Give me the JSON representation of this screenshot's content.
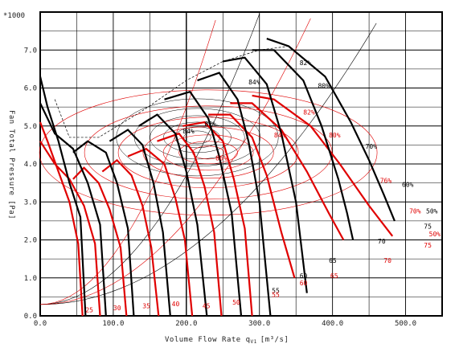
{
  "chart_data": {
    "type": "line",
    "y_multiplier_label": "*1000",
    "xlabel": "Volume Flow Rate q",
    "xlabel_sub": "V1",
    "xlabel_unit": "[m³/s]",
    "ylabel": "Fan Total Pressure [Pa]",
    "xlim": [
      0,
      550
    ],
    "ylim": [
      0,
      8.0
    ],
    "x_ticks": [
      "0.0",
      "100.0",
      "200.0",
      "300.0",
      "400.0",
      "500.0"
    ],
    "x_tick_values": [
      0,
      100,
      200,
      300,
      400,
      500
    ],
    "y_ticks": [
      "0.0",
      "1.0",
      "2.0",
      "3.0",
      "4.0",
      "5.0",
      "6.0",
      "7.0"
    ],
    "y_tick_values": [
      0,
      1,
      2,
      3,
      4,
      5,
      6,
      7
    ],
    "grid": true,
    "colors": {
      "series_a": "#000000",
      "series_b": "#e00000",
      "grid": "#000000"
    },
    "series_black": [
      {
        "name": "",
        "points": [
          [
            0,
            6.3
          ],
          [
            10,
            5.5
          ],
          [
            25,
            4.6
          ],
          [
            40,
            3.5
          ],
          [
            55,
            2.6
          ],
          [
            62,
            0.0
          ]
        ]
      },
      {
        "name": "",
        "points": [
          [
            0,
            5.6
          ],
          [
            20,
            4.8
          ],
          [
            45,
            4.4
          ],
          [
            65,
            3.5
          ],
          [
            82,
            2.4
          ],
          [
            90,
            0.0
          ]
        ]
      },
      {
        "name": "",
        "points": [
          [
            45,
            4.3
          ],
          [
            65,
            4.6
          ],
          [
            90,
            4.3
          ],
          [
            105,
            3.5
          ],
          [
            120,
            2.3
          ],
          [
            128,
            0.0
          ]
        ]
      },
      {
        "name": "",
        "points": [
          [
            95,
            4.6
          ],
          [
            120,
            4.9
          ],
          [
            140,
            4.5
          ],
          [
            155,
            3.5
          ],
          [
            168,
            2.2
          ],
          [
            178,
            0.0
          ]
        ]
      },
      {
        "name": "",
        "points": [
          [
            135,
            5.0
          ],
          [
            160,
            5.3
          ],
          [
            185,
            4.8
          ],
          [
            200,
            3.8
          ],
          [
            215,
            2.4
          ],
          [
            228,
            0.0
          ]
        ]
      },
      {
        "name": "",
        "points": [
          [
            170,
            5.7
          ],
          [
            205,
            5.9
          ],
          [
            230,
            5.2
          ],
          [
            245,
            4.2
          ],
          [
            262,
            2.7
          ],
          [
            275,
            0.0
          ]
        ]
      },
      {
        "name": "",
        "points": [
          [
            215,
            6.2
          ],
          [
            245,
            6.4
          ],
          [
            270,
            5.7
          ],
          [
            285,
            4.6
          ],
          [
            300,
            3.0
          ],
          [
            315,
            0.0
          ]
        ]
      },
      {
        "name": "",
        "points": [
          [
            250,
            6.7
          ],
          [
            280,
            6.8
          ],
          [
            310,
            6.1
          ],
          [
            330,
            4.8
          ],
          [
            350,
            3.0
          ],
          [
            365,
            0.6
          ]
        ]
      },
      {
        "name": "",
        "points": [
          [
            290,
            7.0
          ],
          [
            320,
            7.0
          ],
          [
            360,
            6.2
          ],
          [
            385,
            5.0
          ],
          [
            408,
            3.6
          ],
          [
            420,
            2.7
          ],
          [
            428,
            2.0
          ]
        ]
      },
      {
        "name": "",
        "points": [
          [
            310,
            7.3
          ],
          [
            340,
            7.1
          ],
          [
            390,
            6.3
          ],
          [
            425,
            5.1
          ],
          [
            450,
            4.1
          ],
          [
            470,
            3.2
          ],
          [
            485,
            2.5
          ]
        ]
      }
    ],
    "series_red": [
      {
        "name": "",
        "points": [
          [
            0,
            5.1
          ],
          [
            10,
            4.6
          ],
          [
            25,
            3.8
          ],
          [
            40,
            3.0
          ],
          [
            52,
            1.9
          ],
          [
            58,
            0.0
          ]
        ]
      },
      {
        "name": "",
        "points": [
          [
            0,
            4.6
          ],
          [
            20,
            4.0
          ],
          [
            40,
            3.6
          ],
          [
            60,
            2.9
          ],
          [
            75,
            1.9
          ],
          [
            82,
            0.0
          ]
        ]
      },
      {
        "name": "",
        "points": [
          [
            45,
            3.6
          ],
          [
            60,
            3.9
          ],
          [
            80,
            3.5
          ],
          [
            95,
            2.8
          ],
          [
            110,
            1.8
          ],
          [
            118,
            0.0
          ]
        ]
      },
      {
        "name": "",
        "points": [
          [
            85,
            3.8
          ],
          [
            105,
            4.1
          ],
          [
            125,
            3.7
          ],
          [
            140,
            2.9
          ],
          [
            152,
            1.8
          ],
          [
            162,
            0.0
          ]
        ]
      },
      {
        "name": "",
        "points": [
          [
            120,
            4.2
          ],
          [
            145,
            4.4
          ],
          [
            170,
            4.0
          ],
          [
            185,
            3.1
          ],
          [
            198,
            2.0
          ],
          [
            208,
            0.0
          ]
        ]
      },
      {
        "name": "",
        "points": [
          [
            160,
            4.6
          ],
          [
            190,
            4.8
          ],
          [
            210,
            4.3
          ],
          [
            225,
            3.4
          ],
          [
            238,
            2.2
          ],
          [
            248,
            0.0
          ]
        ]
      },
      {
        "name": "",
        "points": [
          [
            195,
            5.0
          ],
          [
            225,
            5.1
          ],
          [
            250,
            4.6
          ],
          [
            265,
            3.6
          ],
          [
            280,
            2.3
          ],
          [
            290,
            0.0
          ]
        ]
      },
      {
        "name": "",
        "points": [
          [
            230,
            5.3
          ],
          [
            260,
            5.3
          ],
          [
            290,
            4.7
          ],
          [
            310,
            3.7
          ],
          [
            330,
            2.2
          ],
          [
            348,
            1.0
          ]
        ]
      },
      {
        "name": "",
        "points": [
          [
            260,
            5.6
          ],
          [
            290,
            5.6
          ],
          [
            330,
            4.9
          ],
          [
            365,
            3.8
          ],
          [
            395,
            2.7
          ],
          [
            415,
            2.0
          ]
        ]
      },
      {
        "name": "",
        "points": [
          [
            290,
            5.8
          ],
          [
            320,
            5.7
          ],
          [
            370,
            5.0
          ],
          [
            410,
            4.0
          ],
          [
            450,
            2.9
          ],
          [
            482,
            2.1
          ]
        ]
      }
    ],
    "efficiency_labels_black": [
      {
        "text": "82%",
        "x": 355,
        "y": 6.6
      },
      {
        "text": "84%",
        "x": 285,
        "y": 6.1
      },
      {
        "text": "80%",
        "x": 380,
        "y": 6.0
      },
      {
        "text": "82%",
        "x": 225,
        "y": 5.0
      },
      {
        "text": "84%",
        "x": 195,
        "y": 4.8
      },
      {
        "text": "70%",
        "x": 445,
        "y": 4.4
      },
      {
        "text": "60%",
        "x": 495,
        "y": 3.4
      },
      {
        "text": "50%",
        "x": 528,
        "y": 2.7
      },
      {
        "text": "75",
        "x": 525,
        "y": 2.3
      },
      {
        "text": "70",
        "x": 462,
        "y": 1.9
      },
      {
        "text": "65",
        "x": 395,
        "y": 1.4
      },
      {
        "text": "60",
        "x": 355,
        "y": 1.0
      },
      {
        "text": "55",
        "x": 317,
        "y": 0.6
      }
    ],
    "efficiency_labels_red": [
      {
        "text": "82%",
        "x": 360,
        "y": 5.3
      },
      {
        "text": "84%",
        "x": 320,
        "y": 4.7
      },
      {
        "text": "80%",
        "x": 395,
        "y": 4.7
      },
      {
        "text": "86%",
        "x": 240,
        "y": 4.1
      },
      {
        "text": "76%",
        "x": 465,
        "y": 3.5
      },
      {
        "text": "70%",
        "x": 505,
        "y": 2.7
      },
      {
        "text": "50%",
        "x": 532,
        "y": 2.1
      },
      {
        "text": "75",
        "x": 525,
        "y": 1.8
      },
      {
        "text": "70",
        "x": 470,
        "y": 1.4
      },
      {
        "text": "65",
        "x": 397,
        "y": 1.0
      },
      {
        "text": "60",
        "x": 355,
        "y": 0.8
      },
      {
        "text": "55",
        "x": 317,
        "y": 0.5
      },
      {
        "text": "50",
        "x": 263,
        "y": 0.3
      },
      {
        "text": "45",
        "x": 222,
        "y": 0.2
      },
      {
        "text": "40",
        "x": 180,
        "y": 0.25
      },
      {
        "text": "35",
        "x": 140,
        "y": 0.2
      },
      {
        "text": "30",
        "x": 100,
        "y": 0.15
      },
      {
        "text": "25",
        "x": 62,
        "y": 0.1
      }
    ]
  }
}
